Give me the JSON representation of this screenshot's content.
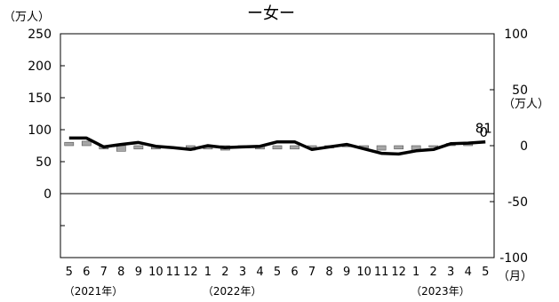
{
  "chart_data": {
    "type": "bar+line",
    "title": "ー女ー",
    "left_axis": {
      "unit_label": "（万人）",
      "ylim": [
        -100,
        250
      ],
      "tick_values": [
        0,
        50,
        100,
        150,
        200,
        250
      ],
      "tick_labels": [
        "0",
        "50",
        "100",
        "150",
        "200",
        "250"
      ]
    },
    "right_axis": {
      "unit_label": "（万人）",
      "ylim": [
        -100,
        100
      ],
      "tick_values": [
        -100,
        -50,
        0,
        50,
        100
      ],
      "tick_labels": [
        "-100",
        "-50",
        "0",
        "50",
        "100"
      ]
    },
    "x_unit_label": "（月）",
    "categories": [
      "5",
      "6",
      "7",
      "8",
      "9",
      "10",
      "11",
      "12",
      "1",
      "2",
      "3",
      "4",
      "5",
      "6",
      "7",
      "8",
      "9",
      "10",
      "11",
      "12",
      "1",
      "2",
      "3",
      "4",
      "5"
    ],
    "year_labels": [
      {
        "index": 0,
        "text": "（2021年）"
      },
      {
        "index": 8,
        "text": "（2022年）"
      },
      {
        "index": 20,
        "text": "（2023年）"
      }
    ],
    "series": [
      {
        "kind": "line",
        "axis": "left",
        "values": [
          87,
          87,
          73,
          77,
          80,
          74,
          72,
          69,
          75,
          72,
          73,
          74,
          81,
          81,
          69,
          73,
          77,
          70,
          63,
          62,
          67,
          69,
          78,
          79,
          81
        ]
      },
      {
        "kind": "bar",
        "axis": "right",
        "values": [
          3,
          4,
          -3,
          -5,
          -3,
          -3,
          0,
          -4,
          -3,
          -4,
          -1,
          -3,
          -3,
          -3,
          -2,
          -2,
          -1,
          -2,
          -4,
          -3,
          -4,
          -1,
          2,
          2,
          0
        ]
      }
    ],
    "annotations": [
      {
        "text": "81",
        "series": 0,
        "index": 24
      },
      {
        "text": "0",
        "series": 1,
        "index": 24
      }
    ],
    "grid": false,
    "legend": "none"
  }
}
